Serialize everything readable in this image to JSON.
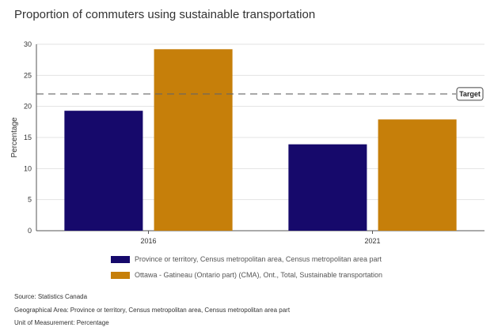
{
  "chart_data": {
    "type": "bar",
    "title": "Proportion of commuters using sustainable transportation",
    "ylabel": "Percentage",
    "xlabel": "",
    "categories": [
      "2016",
      "2021"
    ],
    "ylim": [
      0,
      30
    ],
    "yticks": [
      0,
      5,
      10,
      15,
      20,
      25,
      30
    ],
    "series": [
      {
        "name": "Province or territory, Census metropolitan area, Census metropolitan area part",
        "color": "#16096b",
        "values": [
          19.3,
          13.9
        ]
      },
      {
        "name": "Ottawa - Gatineau (Ontario part) (CMA), Ont., Total, Sustainable transportation",
        "color": "#c67f0a",
        "values": [
          29.2,
          17.9
        ]
      }
    ],
    "target": {
      "label": "Target",
      "value": 22
    },
    "grid": true,
    "legend_position": "bottom"
  },
  "footer": {
    "source_label": "Source:",
    "source_value": "Statistics Canada",
    "geo_label": "Geographical Area:",
    "geo_value": "Province or territory, Census metropolitan area, Census metropolitan area part",
    "unit_label": "Unit of Measurement:",
    "unit_value": "Percentage"
  }
}
